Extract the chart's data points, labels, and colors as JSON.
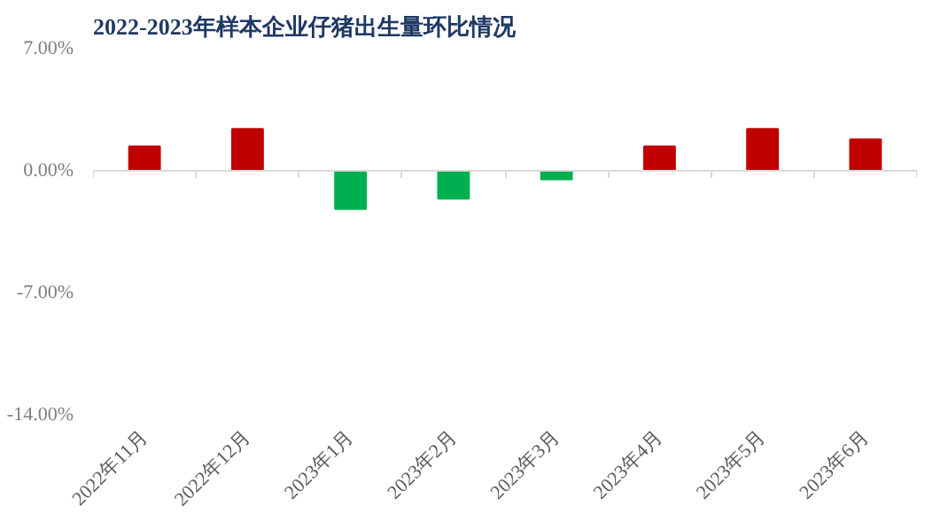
{
  "chart_data": {
    "type": "bar",
    "title": "2022-2023年样本企业仔猪出生量环比情况",
    "categories": [
      "2022年11月",
      "2022年12月",
      "2023年1月",
      "2023年2月",
      "2023年3月",
      "2023年4月",
      "2023年5月",
      "2023年6月"
    ],
    "values": [
      1.4,
      2.4,
      -2.2,
      -1.6,
      -0.5,
      1.4,
      2.4,
      1.8
    ],
    "colors": [
      "#c00000",
      "#c00000",
      "#00b050",
      "#00b050",
      "#00b050",
      "#c00000",
      "#c00000",
      "#c00000"
    ],
    "ylim": [
      -14,
      7
    ],
    "yticks": [
      {
        "value": 7,
        "label": "7.00%"
      },
      {
        "value": 0,
        "label": "0.00%"
      },
      {
        "value": -7,
        "label": "-7.00%"
      },
      {
        "value": -14,
        "label": "-14.00%"
      }
    ],
    "legend": false
  }
}
